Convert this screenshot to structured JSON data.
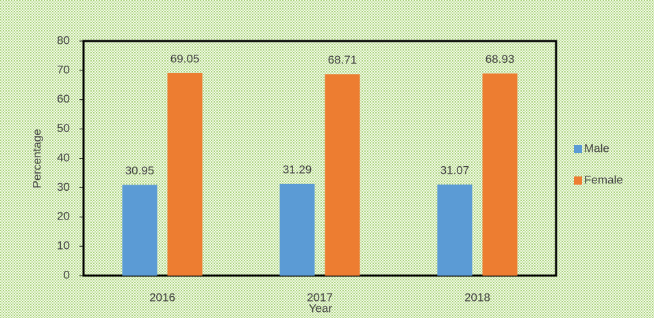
{
  "chart_data": {
    "type": "bar",
    "x_label": "Year",
    "y_label": "Percentage",
    "categories": [
      "2016",
      "2017",
      "2018"
    ],
    "series": [
      {
        "name": "Male",
        "color": "#5b9bd5",
        "values": [
          30.95,
          31.29,
          31.07
        ]
      },
      {
        "name": "Female",
        "color": "#ed7d31",
        "values": [
          69.05,
          68.71,
          68.93
        ]
      }
    ],
    "ylim": [
      0,
      80
    ],
    "yticks": [
      0,
      10,
      20,
      30,
      40,
      50,
      60,
      70,
      80
    ],
    "legend": "right",
    "data_labels": true
  }
}
